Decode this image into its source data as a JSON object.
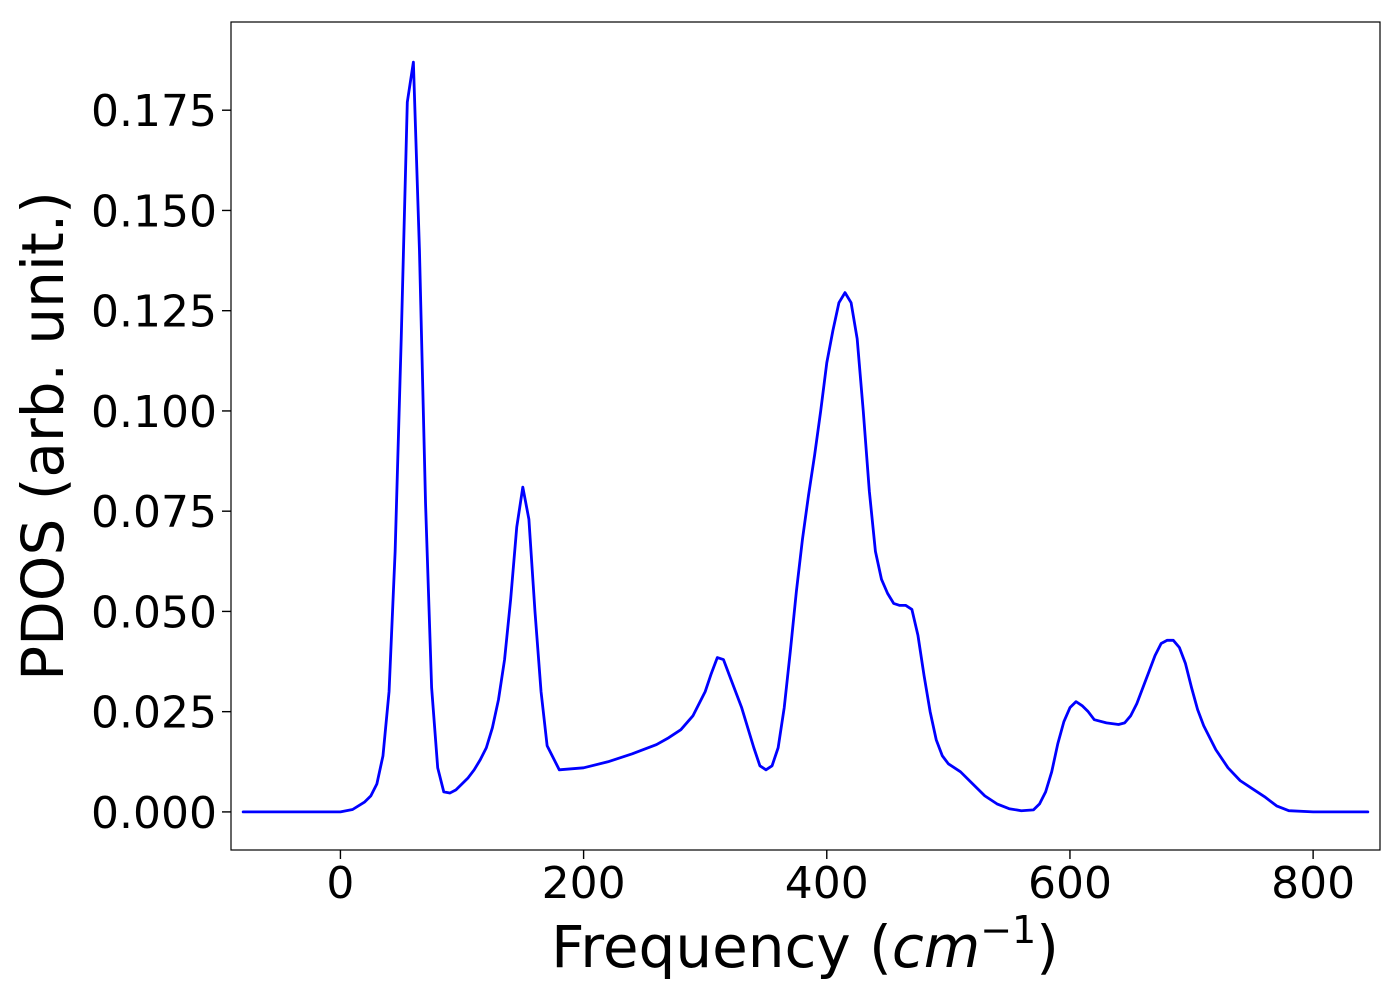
{
  "chart_data": {
    "type": "line",
    "title": "",
    "xlabel": "Frequency",
    "xlabel_unit": "cm",
    "xlabel_unit_exponent": "−1",
    "ylabel": "PDOS (arb. unit.)",
    "xlim": [
      -90,
      855
    ],
    "ylim": [
      -0.0095,
      0.197
    ],
    "xticks": [
      0,
      200,
      400,
      600,
      800
    ],
    "xtick_labels": [
      "0",
      "200",
      "400",
      "600",
      "800"
    ],
    "yticks": [
      0.0,
      0.025,
      0.05,
      0.075,
      0.1,
      0.125,
      0.15,
      0.175
    ],
    "ytick_labels": [
      "0.000",
      "0.025",
      "0.050",
      "0.075",
      "0.100",
      "0.125",
      "0.150",
      "0.175"
    ],
    "grid": false,
    "legend": "none",
    "series": [
      {
        "color": "#0000ff",
        "x": [
          -80,
          -40,
          0,
          10,
          20,
          25,
          30,
          35,
          40,
          45,
          50,
          55,
          60,
          65,
          70,
          75,
          80,
          85,
          90,
          95,
          100,
          105,
          110,
          115,
          120,
          125,
          130,
          135,
          140,
          145,
          150,
          155,
          160,
          165,
          170,
          180,
          200,
          220,
          240,
          260,
          270,
          280,
          290,
          300,
          305,
          310,
          315,
          320,
          330,
          340,
          345,
          350,
          355,
          360,
          365,
          370,
          375,
          380,
          385,
          390,
          395,
          400,
          405,
          410,
          415,
          420,
          425,
          430,
          435,
          440,
          445,
          450,
          455,
          460,
          465,
          470,
          475,
          480,
          485,
          490,
          495,
          500,
          510,
          520,
          530,
          540,
          550,
          560,
          570,
          575,
          580,
          585,
          590,
          595,
          600,
          605,
          610,
          615,
          620,
          630,
          640,
          645,
          650,
          655,
          660,
          665,
          670,
          675,
          680,
          685,
          690,
          695,
          700,
          705,
          710,
          720,
          730,
          740,
          750,
          760,
          770,
          780,
          800,
          845
        ],
        "y": [
          0.0,
          0.0,
          0.0,
          0.0006,
          0.0025,
          0.004,
          0.007,
          0.014,
          0.03,
          0.065,
          0.118,
          0.177,
          0.187,
          0.14,
          0.077,
          0.031,
          0.011,
          0.005,
          0.0047,
          0.0055,
          0.007,
          0.0085,
          0.0105,
          0.013,
          0.016,
          0.021,
          0.028,
          0.038,
          0.053,
          0.071,
          0.081,
          0.073,
          0.05,
          0.03,
          0.0165,
          0.0105,
          0.011,
          0.0125,
          0.0145,
          0.0168,
          0.0185,
          0.0205,
          0.024,
          0.03,
          0.0345,
          0.0385,
          0.038,
          0.034,
          0.026,
          0.016,
          0.0115,
          0.0105,
          0.0115,
          0.016,
          0.026,
          0.04,
          0.055,
          0.068,
          0.079,
          0.089,
          0.1,
          0.112,
          0.12,
          0.127,
          0.1295,
          0.127,
          0.118,
          0.1,
          0.08,
          0.065,
          0.058,
          0.0545,
          0.052,
          0.0515,
          0.0515,
          0.0505,
          0.044,
          0.034,
          0.025,
          0.018,
          0.014,
          0.012,
          0.01,
          0.007,
          0.004,
          0.002,
          0.0008,
          0.0003,
          0.0005,
          0.002,
          0.005,
          0.01,
          0.017,
          0.0225,
          0.026,
          0.0275,
          0.0265,
          0.025,
          0.023,
          0.0222,
          0.0218,
          0.0222,
          0.024,
          0.027,
          0.031,
          0.035,
          0.039,
          0.042,
          0.0428,
          0.0428,
          0.041,
          0.037,
          0.031,
          0.0255,
          0.0215,
          0.0155,
          0.011,
          0.0078,
          0.0058,
          0.0038,
          0.0015,
          0.0003,
          0.0,
          0.0
        ]
      }
    ]
  }
}
